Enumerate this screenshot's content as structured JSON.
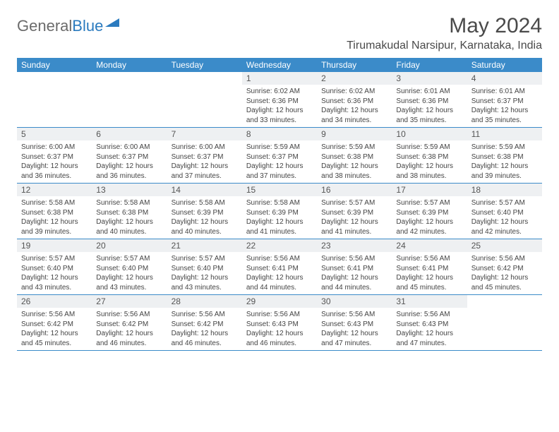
{
  "brand": {
    "part1": "General",
    "part2": "Blue"
  },
  "title": "May 2024",
  "location": "Tirumakudal Narsipur, Karnataka, India",
  "colors": {
    "header_bg": "#3b8bc9",
    "header_text": "#ffffff",
    "daynum_bg": "#eef0f2",
    "border": "#3b8bc9",
    "logo_gray": "#6b6b6b",
    "logo_blue": "#2b7bbf"
  },
  "day_names": [
    "Sunday",
    "Monday",
    "Tuesday",
    "Wednesday",
    "Thursday",
    "Friday",
    "Saturday"
  ],
  "weeks": [
    [
      null,
      null,
      null,
      {
        "n": "1",
        "sr": "6:02 AM",
        "ss": "6:36 PM",
        "dl": "12 hours and 33 minutes."
      },
      {
        "n": "2",
        "sr": "6:02 AM",
        "ss": "6:36 PM",
        "dl": "12 hours and 34 minutes."
      },
      {
        "n": "3",
        "sr": "6:01 AM",
        "ss": "6:36 PM",
        "dl": "12 hours and 35 minutes."
      },
      {
        "n": "4",
        "sr": "6:01 AM",
        "ss": "6:37 PM",
        "dl": "12 hours and 35 minutes."
      }
    ],
    [
      {
        "n": "5",
        "sr": "6:00 AM",
        "ss": "6:37 PM",
        "dl": "12 hours and 36 minutes."
      },
      {
        "n": "6",
        "sr": "6:00 AM",
        "ss": "6:37 PM",
        "dl": "12 hours and 36 minutes."
      },
      {
        "n": "7",
        "sr": "6:00 AM",
        "ss": "6:37 PM",
        "dl": "12 hours and 37 minutes."
      },
      {
        "n": "8",
        "sr": "5:59 AM",
        "ss": "6:37 PM",
        "dl": "12 hours and 37 minutes."
      },
      {
        "n": "9",
        "sr": "5:59 AM",
        "ss": "6:38 PM",
        "dl": "12 hours and 38 minutes."
      },
      {
        "n": "10",
        "sr": "5:59 AM",
        "ss": "6:38 PM",
        "dl": "12 hours and 38 minutes."
      },
      {
        "n": "11",
        "sr": "5:59 AM",
        "ss": "6:38 PM",
        "dl": "12 hours and 39 minutes."
      }
    ],
    [
      {
        "n": "12",
        "sr": "5:58 AM",
        "ss": "6:38 PM",
        "dl": "12 hours and 39 minutes."
      },
      {
        "n": "13",
        "sr": "5:58 AM",
        "ss": "6:38 PM",
        "dl": "12 hours and 40 minutes."
      },
      {
        "n": "14",
        "sr": "5:58 AM",
        "ss": "6:39 PM",
        "dl": "12 hours and 40 minutes."
      },
      {
        "n": "15",
        "sr": "5:58 AM",
        "ss": "6:39 PM",
        "dl": "12 hours and 41 minutes."
      },
      {
        "n": "16",
        "sr": "5:57 AM",
        "ss": "6:39 PM",
        "dl": "12 hours and 41 minutes."
      },
      {
        "n": "17",
        "sr": "5:57 AM",
        "ss": "6:39 PM",
        "dl": "12 hours and 42 minutes."
      },
      {
        "n": "18",
        "sr": "5:57 AM",
        "ss": "6:40 PM",
        "dl": "12 hours and 42 minutes."
      }
    ],
    [
      {
        "n": "19",
        "sr": "5:57 AM",
        "ss": "6:40 PM",
        "dl": "12 hours and 43 minutes."
      },
      {
        "n": "20",
        "sr": "5:57 AM",
        "ss": "6:40 PM",
        "dl": "12 hours and 43 minutes."
      },
      {
        "n": "21",
        "sr": "5:57 AM",
        "ss": "6:40 PM",
        "dl": "12 hours and 43 minutes."
      },
      {
        "n": "22",
        "sr": "5:56 AM",
        "ss": "6:41 PM",
        "dl": "12 hours and 44 minutes."
      },
      {
        "n": "23",
        "sr": "5:56 AM",
        "ss": "6:41 PM",
        "dl": "12 hours and 44 minutes."
      },
      {
        "n": "24",
        "sr": "5:56 AM",
        "ss": "6:41 PM",
        "dl": "12 hours and 45 minutes."
      },
      {
        "n": "25",
        "sr": "5:56 AM",
        "ss": "6:42 PM",
        "dl": "12 hours and 45 minutes."
      }
    ],
    [
      {
        "n": "26",
        "sr": "5:56 AM",
        "ss": "6:42 PM",
        "dl": "12 hours and 45 minutes."
      },
      {
        "n": "27",
        "sr": "5:56 AM",
        "ss": "6:42 PM",
        "dl": "12 hours and 46 minutes."
      },
      {
        "n": "28",
        "sr": "5:56 AM",
        "ss": "6:42 PM",
        "dl": "12 hours and 46 minutes."
      },
      {
        "n": "29",
        "sr": "5:56 AM",
        "ss": "6:43 PM",
        "dl": "12 hours and 46 minutes."
      },
      {
        "n": "30",
        "sr": "5:56 AM",
        "ss": "6:43 PM",
        "dl": "12 hours and 47 minutes."
      },
      {
        "n": "31",
        "sr": "5:56 AM",
        "ss": "6:43 PM",
        "dl": "12 hours and 47 minutes."
      },
      null
    ]
  ],
  "labels": {
    "sunrise": "Sunrise: ",
    "sunset": "Sunset: ",
    "daylight": "Daylight: "
  }
}
